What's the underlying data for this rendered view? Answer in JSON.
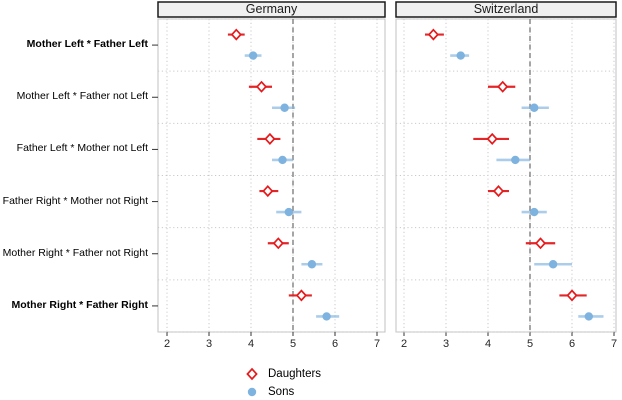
{
  "chart_data": {
    "type": "scatter",
    "subtype": "dot-whisker-forest",
    "facets": [
      {
        "label": "Germany"
      },
      {
        "label": "Switzerland"
      }
    ],
    "categories": [
      {
        "label": "Mother Left * Father Left",
        "bold": true
      },
      {
        "label": "Mother Left * Father not Left",
        "bold": false
      },
      {
        "label": "Father Left * Mother not Left",
        "bold": false
      },
      {
        "label": "Father Right * Mother not Right",
        "bold": false
      },
      {
        "label": "Mother Right * Father not Right",
        "bold": false
      },
      {
        "label": "Mother Right * Father Right",
        "bold": true
      }
    ],
    "xticks": [
      2,
      3,
      4,
      5,
      6,
      7
    ],
    "xlim": [
      1.8,
      7.2
    ],
    "reference_line_x": 5,
    "grid": "dotted",
    "legend": {
      "position": "bottom-center"
    },
    "series": [
      {
        "name": "Daughters",
        "marker": "open-diamond",
        "color": "#E41A1C",
        "data": {
          "Germany": [
            {
              "x": 3.65,
              "lo": 3.45,
              "hi": 3.85
            },
            {
              "x": 4.25,
              "lo": 3.95,
              "hi": 4.5
            },
            {
              "x": 4.45,
              "lo": 4.15,
              "hi": 4.7
            },
            {
              "x": 4.4,
              "lo": 4.2,
              "hi": 4.65
            },
            {
              "x": 4.65,
              "lo": 4.4,
              "hi": 4.9
            },
            {
              "x": 5.2,
              "lo": 4.9,
              "hi": 5.45
            }
          ],
          "Switzerland": [
            {
              "x": 2.7,
              "lo": 2.5,
              "hi": 2.95
            },
            {
              "x": 4.35,
              "lo": 4.0,
              "hi": 4.65
            },
            {
              "x": 4.1,
              "lo": 3.65,
              "hi": 4.5
            },
            {
              "x": 4.25,
              "lo": 4.0,
              "hi": 4.5
            },
            {
              "x": 5.25,
              "lo": 4.9,
              "hi": 5.6
            },
            {
              "x": 6.0,
              "lo": 5.7,
              "hi": 6.35
            }
          ]
        }
      },
      {
        "name": "Sons",
        "marker": "filled-circle",
        "color": "#7EB2DF",
        "data": {
          "Germany": [
            {
              "x": 4.05,
              "lo": 3.85,
              "hi": 4.25
            },
            {
              "x": 4.8,
              "lo": 4.5,
              "hi": 5.05
            },
            {
              "x": 4.75,
              "lo": 4.5,
              "hi": 5.0
            },
            {
              "x": 4.9,
              "lo": 4.6,
              "hi": 5.2
            },
            {
              "x": 5.45,
              "lo": 5.2,
              "hi": 5.7
            },
            {
              "x": 5.8,
              "lo": 5.55,
              "hi": 6.1
            }
          ],
          "Switzerland": [
            {
              "x": 3.35,
              "lo": 3.1,
              "hi": 3.55
            },
            {
              "x": 5.1,
              "lo": 4.8,
              "hi": 5.45
            },
            {
              "x": 4.65,
              "lo": 4.2,
              "hi": 5.0
            },
            {
              "x": 5.1,
              "lo": 4.8,
              "hi": 5.4
            },
            {
              "x": 5.55,
              "lo": 5.1,
              "hi": 6.0
            },
            {
              "x": 6.4,
              "lo": 6.15,
              "hi": 6.75
            }
          ]
        }
      }
    ],
    "colors": {
      "daughters": "#E41A1C",
      "sons": "#7EB2DF",
      "reference_line": "#7F7F7F",
      "grid": "#C9C9C9",
      "strip_fill": "#F0F0F0",
      "strip_border": "#1A1A1A",
      "panel_border": "#C2C2C2",
      "tick_text": "#262626"
    }
  }
}
